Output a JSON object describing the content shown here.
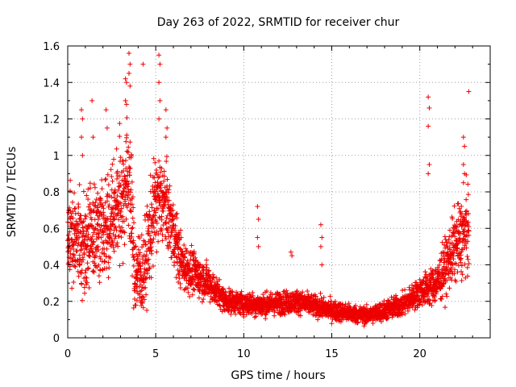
{
  "chart_data": {
    "type": "scatter",
    "title": "Day 263 of 2022, SRMTID for receiver chur",
    "xlabel": "GPS time / hours",
    "ylabel": "SRMTID / TECUs",
    "xlim": [
      0,
      24
    ],
    "ylim": [
      0,
      1.6
    ],
    "xticks": [
      0,
      5,
      10,
      15,
      20
    ],
    "xtick_labels": [
      "0",
      "5",
      "10",
      "15",
      "20"
    ],
    "yticks": [
      0,
      0.2,
      0.4,
      0.6,
      0.8,
      1.0,
      1.2,
      1.4,
      1.6
    ],
    "ytick_labels": [
      "0",
      "0.2",
      "0.4",
      "0.6",
      "0.8",
      "1",
      "1.2",
      "1.4",
      "1.6"
    ],
    "grid": true,
    "marker": "+",
    "color": "#ee0000",
    "trend": [
      {
        "t": 0.0,
        "center": 0.55,
        "spread": 0.3
      },
      {
        "t": 1.0,
        "center": 0.55,
        "spread": 0.35
      },
      {
        "t": 2.0,
        "center": 0.6,
        "spread": 0.35
      },
      {
        "t": 3.0,
        "center": 0.75,
        "spread": 0.4
      },
      {
        "t": 3.5,
        "center": 0.9,
        "spread": 0.45
      },
      {
        "t": 3.8,
        "center": 0.35,
        "spread": 0.3
      },
      {
        "t": 4.3,
        "center": 0.35,
        "spread": 0.3
      },
      {
        "t": 5.0,
        "center": 0.75,
        "spread": 0.35
      },
      {
        "t": 5.5,
        "center": 0.75,
        "spread": 0.3
      },
      {
        "t": 6.5,
        "center": 0.4,
        "spread": 0.18
      },
      {
        "t": 8.0,
        "center": 0.3,
        "spread": 0.12
      },
      {
        "t": 9.0,
        "center": 0.2,
        "spread": 0.08
      },
      {
        "t": 11.0,
        "center": 0.18,
        "spread": 0.08
      },
      {
        "t": 13.0,
        "center": 0.2,
        "spread": 0.08
      },
      {
        "t": 15.0,
        "center": 0.15,
        "spread": 0.07
      },
      {
        "t": 17.0,
        "center": 0.12,
        "spread": 0.06
      },
      {
        "t": 19.0,
        "center": 0.18,
        "spread": 0.08
      },
      {
        "t": 20.0,
        "center": 0.25,
        "spread": 0.1
      },
      {
        "t": 21.0,
        "center": 0.3,
        "spread": 0.15
      },
      {
        "t": 22.0,
        "center": 0.5,
        "spread": 0.25
      },
      {
        "t": 22.8,
        "center": 0.6,
        "spread": 0.3
      }
    ],
    "spikes": [
      {
        "t": 0.8,
        "values": [
          1.25,
          1.2,
          1.1,
          1.0
        ]
      },
      {
        "t": 1.4,
        "values": [
          1.3,
          1.1
        ]
      },
      {
        "t": 2.2,
        "values": [
          1.25,
          1.15
        ]
      },
      {
        "t": 3.3,
        "values": [
          1.42,
          1.4,
          1.3,
          1.28
        ]
      },
      {
        "t": 3.5,
        "values": [
          1.56,
          1.5,
          1.45,
          1.38
        ]
      },
      {
        "t": 4.3,
        "values": [
          1.5
        ]
      },
      {
        "t": 5.2,
        "values": [
          1.55,
          1.5,
          1.4,
          1.3,
          1.2
        ]
      },
      {
        "t": 5.6,
        "values": [
          1.25,
          1.15,
          1.1
        ]
      },
      {
        "t": 10.8,
        "values": [
          0.72,
          0.65,
          0.55,
          0.5
        ]
      },
      {
        "t": 12.7,
        "values": [
          0.47,
          0.45
        ]
      },
      {
        "t": 14.4,
        "values": [
          0.62,
          0.55,
          0.5,
          0.4
        ]
      },
      {
        "t": 20.5,
        "values": [
          1.32,
          1.26,
          1.16,
          0.95,
          0.9
        ]
      },
      {
        "t": 22.5,
        "values": [
          1.1,
          1.05,
          0.95,
          0.9,
          0.85
        ]
      },
      {
        "t": 22.8,
        "values": [
          1.35
        ]
      }
    ]
  }
}
